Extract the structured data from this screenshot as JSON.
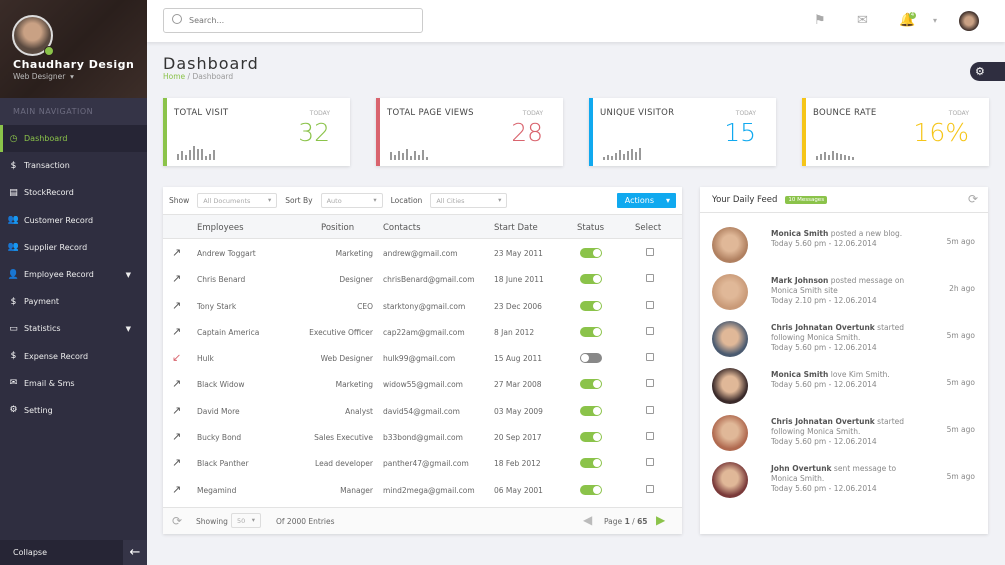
{
  "profile": {
    "name": "Chaudhary Design",
    "role": "Web Designer"
  },
  "nav": {
    "heading": "MAIN NAVIGATION",
    "items": [
      {
        "label": "Dashboard",
        "icon": "dashboard-icon",
        "glyph": "◷",
        "active": true
      },
      {
        "label": "Transaction",
        "icon": "money-icon",
        "glyph": "$"
      },
      {
        "label": "StockRecord",
        "icon": "database-icon",
        "glyph": "▤"
      },
      {
        "label": "Customer Record",
        "icon": "users-icon",
        "glyph": "👥"
      },
      {
        "label": "Supplier Record",
        "icon": "users-icon",
        "glyph": "👥"
      },
      {
        "label": "Employee Record",
        "icon": "user-plus-icon",
        "glyph": "👤",
        "caret": true
      },
      {
        "label": "Payment",
        "icon": "dollar-icon",
        "glyph": "$"
      },
      {
        "label": "Statistics",
        "icon": "chart-icon",
        "glyph": "▭",
        "caret": true
      },
      {
        "label": "Expense Record",
        "icon": "money-icon",
        "glyph": "$"
      },
      {
        "label": "Email & Sms",
        "icon": "envelope-icon",
        "glyph": "✉"
      },
      {
        "label": "Setting",
        "icon": "gear-icon",
        "glyph": "⚙"
      }
    ],
    "collapse": "Collapse"
  },
  "topbar": {
    "search_placeholder": "Search...",
    "bell_count": "4"
  },
  "page": {
    "title": "Dashboard",
    "breadcrumb_home": "Home",
    "breadcrumb_current": "Dashboard"
  },
  "stats": [
    {
      "label": "TOTAL VISIT",
      "today": "TODAY",
      "value": "32",
      "color": "#8bc34a",
      "spark": [
        6,
        9,
        5,
        10,
        14,
        11,
        11,
        4,
        6,
        10
      ]
    },
    {
      "label": "TOTAL PAGE VIEWS",
      "today": "TODAY",
      "value": "28",
      "color": "#d9646e",
      "spark": [
        8,
        5,
        9,
        7,
        11,
        4,
        9,
        5,
        10,
        3
      ]
    },
    {
      "label": "UNIQUE VISITOR",
      "today": "TODAY",
      "value": "15",
      "color": "#10a9ef",
      "spark": [
        3,
        5,
        4,
        7,
        10,
        6,
        9,
        11,
        8,
        12
      ]
    },
    {
      "label": "BOUNCE RATE",
      "today": "TODAY",
      "value": "16%",
      "color": "#f5c518",
      "spark": [
        4,
        6,
        8,
        5,
        9,
        7,
        6,
        5,
        4,
        3
      ]
    }
  ],
  "table": {
    "filters": {
      "show_label": "Show",
      "show_value": "All Documents",
      "sort_label": "Sort By",
      "sort_value": "Auto",
      "location_label": "Location",
      "location_value": "All Cities",
      "actions": "Actions"
    },
    "columns": [
      "Employees",
      "Position",
      "Contacts",
      "Start Date",
      "Status",
      "Select"
    ],
    "rows": [
      {
        "trend": "up",
        "name": "Andrew Toggart",
        "position": "Marketing",
        "contact": "andrew@gmail.com",
        "date": "23 May 2011",
        "active": true
      },
      {
        "trend": "up",
        "name": "Chris Benard",
        "position": "Designer",
        "contact": "chrisBenard@gmail.com",
        "date": "18 June 2011",
        "active": true
      },
      {
        "trend": "up",
        "name": "Tony Stark",
        "position": "CEO",
        "contact": "starktony@gmail.com",
        "date": "23 Dec 2006",
        "active": true
      },
      {
        "trend": "up",
        "name": "Captain America",
        "position": "Executive Officer",
        "contact": "cap22am@gmail.com",
        "date": "8 Jan 2012",
        "active": true
      },
      {
        "trend": "down",
        "name": "Hulk",
        "position": "Web Designer",
        "contact": "hulk99@gmail.com",
        "date": "15 Aug 2011",
        "active": false
      },
      {
        "trend": "up",
        "name": "Black Widow",
        "position": "Marketing",
        "contact": "widow55@gmail.com",
        "date": "27 Mar 2008",
        "active": true
      },
      {
        "trend": "up",
        "name": "David More",
        "position": "Analyst",
        "contact": "david54@gmail.com",
        "date": "03 May 2009",
        "active": true
      },
      {
        "trend": "up",
        "name": "Bucky Bond",
        "position": "Sales Executive",
        "contact": "b33bond@gmail.com",
        "date": "20 Sep 2017",
        "active": true
      },
      {
        "trend": "up",
        "name": "Black Panther",
        "position": "Lead developer",
        "contact": "panther47@gmail.com",
        "date": "18 Feb 2012",
        "active": true
      },
      {
        "trend": "up",
        "name": "Megamind",
        "position": "Manager",
        "contact": "mind2mega@gmail.com",
        "date": "06 May 2001",
        "active": true
      }
    ],
    "footer": {
      "showing": "Showing",
      "per_page": "50",
      "of_entries": "Of  2000 Entries",
      "page_label": "Page",
      "page_current": "1",
      "page_total": "65"
    }
  },
  "feed": {
    "title": "Your Daily Feed",
    "badge": "10 Messages",
    "items": [
      {
        "name": "Monica Smith",
        "action": " posted a new blog.",
        "time": "Today 5.60 pm - 12.06.2014",
        "ago": "5m ago",
        "avatar": "#b08060"
      },
      {
        "name": "Mark Johnson",
        "action": " posted message on Monica Smith site",
        "time": "Today 2.10 pm - 12.06.2014",
        "ago": "2h ago",
        "avatar": "#c99a78"
      },
      {
        "name": "Chris Johnatan Overtunk",
        "action": " started following Monica Smith.",
        "time": "Today 5.60 pm - 12.06.2014",
        "ago": "5m ago",
        "avatar": "#4a5a70"
      },
      {
        "name": "Monica Smith",
        "action": " love Kim Smith.",
        "time": "Today 5.60 pm - 12.06.2014",
        "ago": "5m ago",
        "avatar": "#3a2a2a"
      },
      {
        "name": "Chris Johnatan Overtunk",
        "action": " started following Monica Smith.",
        "time": "Today 5.60 pm - 12.06.2014",
        "ago": "5m ago",
        "avatar": "#b06a50"
      },
      {
        "name": "John Overtunk",
        "action": " sent message to Monica Smith.",
        "time": "Today 5.60 pm - 12.06.2014",
        "ago": "5m ago",
        "avatar": "#7a3a3a"
      }
    ]
  }
}
